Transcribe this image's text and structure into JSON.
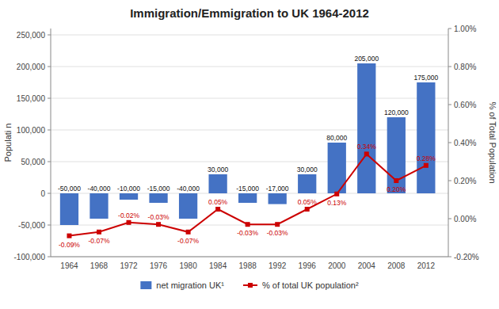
{
  "chart_data": {
    "type": "bar",
    "title": "Immigration/Emmigration to UK 1964-2012",
    "x": [
      1964,
      1968,
      1972,
      1976,
      1980,
      1984,
      1988,
      1992,
      1996,
      2000,
      2004,
      2008,
      2012
    ],
    "xlim": [
      1961.5,
      2015
    ],
    "xticks": [
      1964,
      1968,
      1972,
      1976,
      1980,
      1984,
      1988,
      1992,
      1996,
      2000,
      2004,
      2008,
      2012
    ],
    "ylabel": "Populati n",
    "y2label": "% of Total Population",
    "ylim": [
      -100000,
      260000
    ],
    "yticks": [
      {
        "value": -100000,
        "label": "-100,000"
      },
      {
        "value": -50000,
        "label": "-50,000"
      },
      0,
      {
        "value": 50000,
        "label": "50,000"
      },
      {
        "value": 100000,
        "label": "100,000"
      },
      {
        "value": 150000,
        "label": "150,000"
      },
      {
        "value": 200000,
        "label": "200,000"
      },
      {
        "value": 250000,
        "label": "250,000"
      }
    ],
    "y2lim": [
      -0.002,
      0.01
    ],
    "y2ticks": [
      {
        "value": -0.002,
        "label": "-0.20%"
      },
      {
        "value": 0.0,
        "label": "0.00%"
      },
      {
        "value": 0.002,
        "label": "0.20%"
      },
      {
        "value": 0.004,
        "label": "0.40%"
      },
      {
        "value": 0.006,
        "label": "0.60%"
      },
      {
        "value": 0.008,
        "label": "0.80%"
      },
      {
        "value": 0.01,
        "label": "1.00%"
      }
    ],
    "grid": true,
    "legend": "bottom",
    "data_labels": true,
    "series": [
      {
        "name": "net migration  UK¹",
        "type": "bar",
        "color": "#4472C4",
        "values": [
          -50000,
          -40000,
          -10000,
          -15000,
          -40000,
          30000,
          -15000,
          -17000,
          30000,
          80000,
          205000,
          120000,
          175000
        ],
        "value_labels": [
          "-50,000",
          "-40,000",
          "-10,000",
          "-15,000",
          "-40,000",
          "30,000",
          "-15,000",
          "-17,000",
          "30,000",
          "80,000",
          "205,000",
          "120,000",
          "175,000"
        ]
      },
      {
        "name": "% of total UK population²",
        "type": "line",
        "axis": "y2",
        "color": "#CC0000",
        "marker": "square",
        "values": [
          -0.0009,
          -0.0007,
          -0.0002,
          -0.0003,
          -0.0007,
          0.0005,
          -0.0003,
          -0.0003,
          0.0005,
          0.0013,
          0.0034,
          0.002,
          0.0028
        ],
        "value_labels": [
          "-0.09%",
          "-0.07%",
          "-0.02%",
          "-0.03%",
          "-0.07%",
          "0.05%",
          "-0.03%",
          "-0.03%",
          "0.05%",
          "0.13%",
          "0.34%",
          "0.20%",
          "0.28%"
        ]
      }
    ]
  }
}
